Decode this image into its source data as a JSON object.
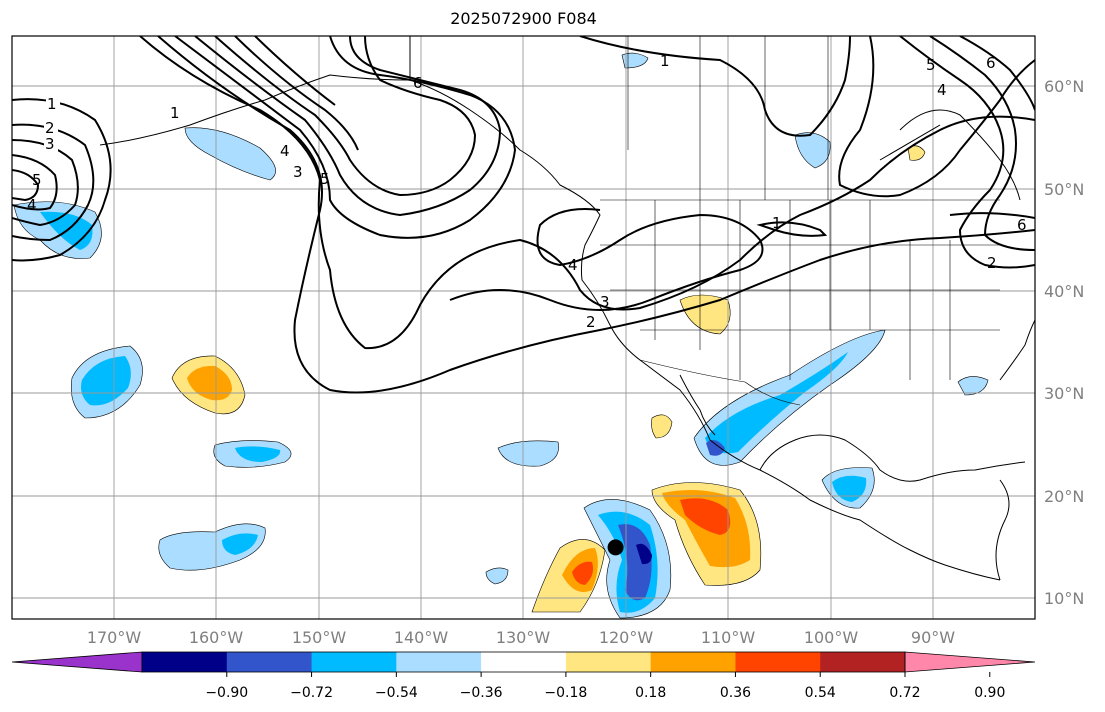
{
  "title": "2025072900 F084",
  "map": {
    "projection": "PlateCarree",
    "lon_range": [
      -180,
      -80
    ],
    "lat_range": [
      8,
      65
    ],
    "gridlines": true,
    "lon_ticks": [
      "170°W",
      "160°W",
      "150°W",
      "140°W",
      "130°W",
      "120°W",
      "110°W",
      "100°W",
      "90°W"
    ],
    "lat_ticks": [
      "10°N",
      "20°N",
      "30°N",
      "40°N",
      "50°N",
      "60°N"
    ],
    "contour_labels": [
      "1",
      "2",
      "3",
      "4",
      "5",
      "6"
    ],
    "marker": {
      "lon": -121.0,
      "lat": 15.0,
      "color": "#000000",
      "name": "black-dot"
    }
  },
  "colorbar": {
    "orientation": "horizontal",
    "extend": "both",
    "colors": [
      "#9933cc",
      "#000088",
      "#3355cc",
      "#00bbff",
      "#aaddff",
      "#ffffff",
      "#ffe680",
      "#ffa200",
      "#ff4400",
      "#b22222",
      "#ff88aa"
    ],
    "tick_labels": [
      "−0.90",
      "−0.72",
      "−0.54",
      "−0.36",
      "−0.18",
      "0.18",
      "0.36",
      "0.54",
      "0.72",
      "0.90"
    ]
  }
}
